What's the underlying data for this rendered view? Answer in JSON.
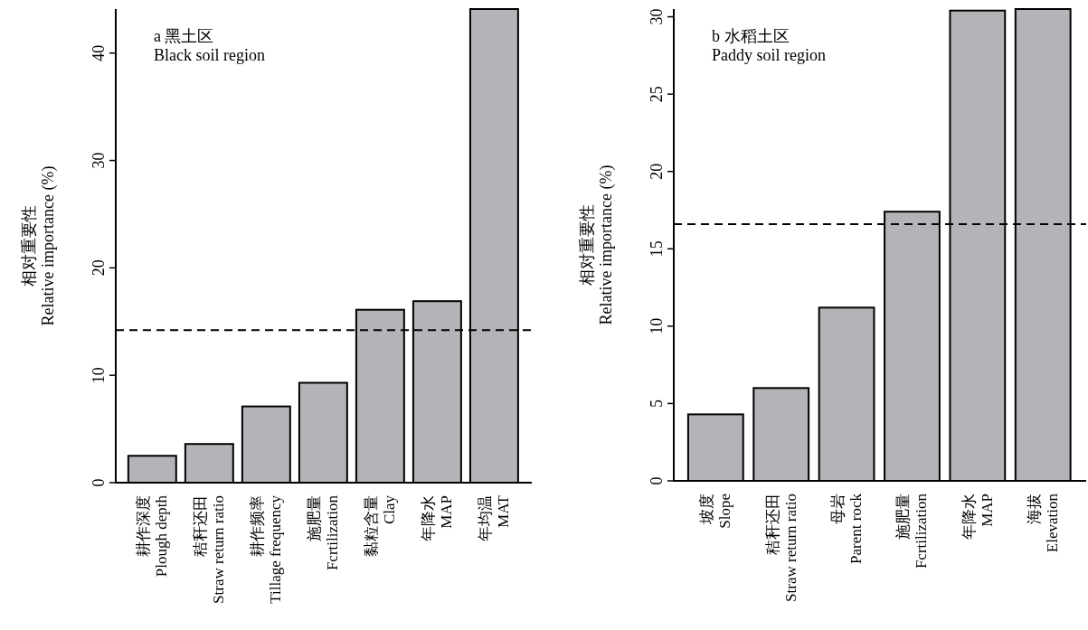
{
  "chart_data": [
    {
      "type": "bar",
      "title": "a 黑土区",
      "subtitle": "Black soil region",
      "ylabel": "相对重要性\nRelative importance (%)",
      "categories": [
        "耕作深度\nPlough depth",
        "秸秆还田\nStraw return ratio",
        "耕作频率\nTillage frequency",
        "施肥量\nFcrtilization",
        "黏粒含量\nClay",
        "年降水\nMAP",
        "年均温\nMAT"
      ],
      "values": [
        2.5,
        3.6,
        7.1,
        9.3,
        16.1,
        16.9,
        44.1
      ],
      "color": "#b3b4b8",
      "ylim": [
        0,
        44.1
      ],
      "yticks": [
        0,
        10,
        20,
        30,
        40
      ],
      "ref_lines": [
        {
          "axis": "y",
          "value": 14.2,
          "line_style": "dashed",
          "color": "#000000"
        }
      ]
    },
    {
      "type": "bar",
      "title": "b 水稻土区",
      "subtitle": "Paddy soil region",
      "ylabel": "相对重要性\nRelative importance (%)",
      "categories": [
        "坡度\nSlope",
        "秸秆还田\nStraw return ratio",
        "母岩\nParent rock",
        "施肥量\nFcrtilization",
        "年降水\nMAP",
        "海拔\nElevation"
      ],
      "values": [
        4.3,
        6.0,
        11.2,
        17.4,
        30.4,
        30.5
      ],
      "color": "#b3b4b8",
      "ylim": [
        0,
        30.5
      ],
      "yticks": [
        0,
        5,
        10,
        15,
        20,
        25,
        30
      ],
      "ref_lines": [
        {
          "axis": "y",
          "value": 16.6,
          "line_style": "dashed",
          "color": "#000000"
        }
      ]
    }
  ]
}
